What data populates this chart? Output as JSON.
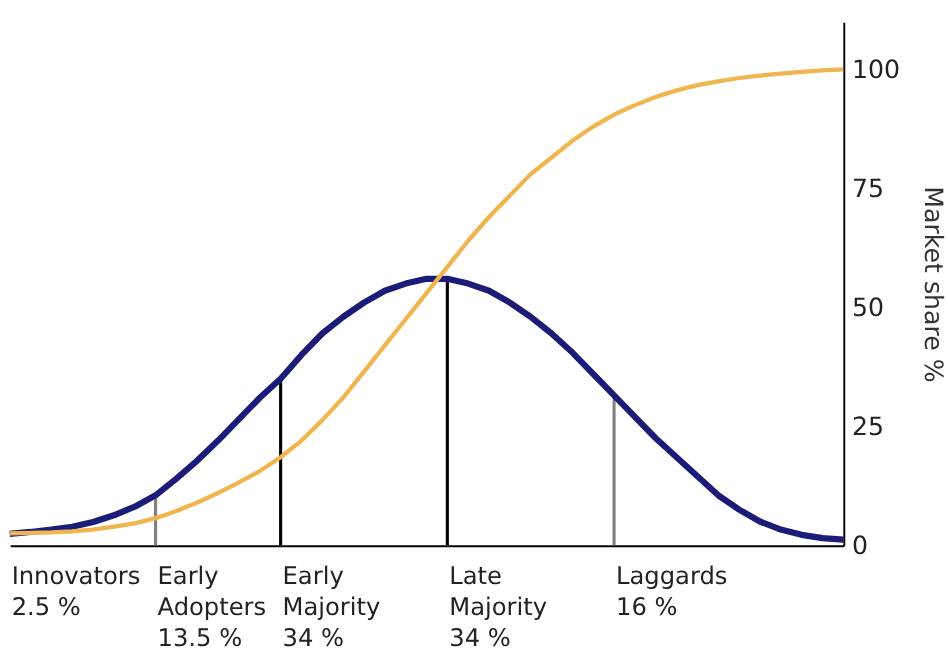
{
  "chart_data": {
    "type": "line",
    "ylabel": "Market share %",
    "ylim": [
      0,
      110
    ],
    "yticks": [
      0,
      25,
      50,
      75,
      100
    ],
    "grid": false,
    "marker": "none",
    "line_style": "solid",
    "categories": [
      null,
      null,
      null,
      null,
      null,
      null,
      null,
      null,
      null,
      null,
      null,
      null,
      null,
      null,
      null,
      null,
      null,
      null,
      null,
      null,
      null,
      null,
      null,
      null,
      null,
      null,
      null,
      null,
      null,
      null,
      null,
      null,
      null,
      null,
      null,
      null,
      null,
      null,
      null,
      null,
      null
    ],
    "annotations": [
      "Innovators\n2.5 %",
      "Early\nAdopters\n13.5 %",
      "Early\nMajority\n34 %",
      "Late\nMajority\n34 %",
      "Laggards\n16 %"
    ],
    "series": [
      {
        "color": "#1b1b78",
        "values": [
          2.4,
          2.8,
          3.3,
          3.9,
          4.9,
          6.3,
          8.1,
          10.5,
          14,
          17.8,
          22,
          26.5,
          31,
          35,
          40,
          44.5,
          48,
          51,
          53.5,
          55,
          56,
          56,
          55,
          53.5,
          51,
          48,
          44.5,
          40.5,
          36,
          31.5,
          27,
          22.5,
          18.5,
          14.5,
          10.5,
          7.5,
          5,
          3.3,
          2.2,
          1.5,
          1.2
        ]
      },
      {
        "color": "#f0b54f",
        "values": [
          2.5,
          2.6,
          2.7,
          2.9,
          3.3,
          3.9,
          4.6,
          5.7,
          7.2,
          9,
          11,
          13.2,
          15.6,
          18.5,
          22,
          26.3,
          31,
          36.5,
          42,
          47.5,
          53,
          58.5,
          64,
          69,
          73.5,
          78,
          81.5,
          85,
          88,
          90.5,
          92.5,
          94.2,
          95.6,
          96.7,
          97.5,
          98.2,
          98.7,
          99.1,
          99.5,
          99.8,
          100
        ]
      },
      {
        "type": "bar",
        "colors": [
          null,
          null,
          null,
          null,
          null,
          null,
          null,
          "#808080",
          null,
          null,
          null,
          null,
          null,
          "#000000",
          null,
          null,
          null,
          null,
          null,
          null,
          null,
          "#000000",
          null,
          null,
          null,
          null,
          null,
          null,
          null,
          "#808080",
          null,
          null,
          null,
          null,
          null,
          null,
          null,
          null,
          null,
          null,
          null
        ],
        "values": [
          null,
          null,
          null,
          null,
          null,
          null,
          null,
          10.5,
          null,
          null,
          null,
          null,
          null,
          35,
          null,
          null,
          null,
          null,
          null,
          null,
          null,
          56,
          null,
          null,
          null,
          null,
          null,
          null,
          null,
          31.5,
          null,
          null,
          null,
          null,
          null,
          null,
          null,
          null,
          null,
          null,
          null
        ]
      }
    ]
  }
}
